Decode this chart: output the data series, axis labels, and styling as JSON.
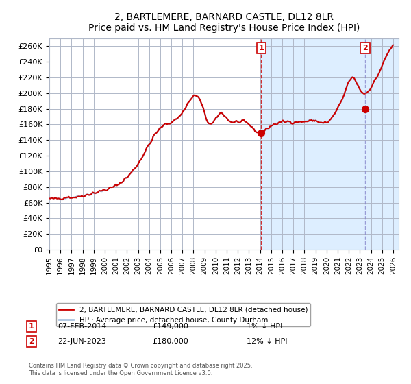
{
  "title": "2, BARTLEMERE, BARNARD CASTLE, DL12 8LR",
  "subtitle": "Price paid vs. HM Land Registry's House Price Index (HPI)",
  "ylabel_ticks": [
    "£0",
    "£20K",
    "£40K",
    "£60K",
    "£80K",
    "£100K",
    "£120K",
    "£140K",
    "£160K",
    "£180K",
    "£200K",
    "£220K",
    "£240K",
    "£260K"
  ],
  "ytick_vals": [
    0,
    20000,
    40000,
    60000,
    80000,
    100000,
    120000,
    140000,
    160000,
    180000,
    200000,
    220000,
    240000,
    260000
  ],
  "ylim": [
    0,
    270000
  ],
  "xlim_start": 1995.0,
  "xlim_end": 2026.5,
  "sale1_date": 2014.1,
  "sale1_price": 149000,
  "sale1_label": "1",
  "sale2_date": 2023.47,
  "sale2_price": 180000,
  "sale2_label": "2",
  "annotation1_date": "07-FEB-2014",
  "annotation1_price": "£149,000",
  "annotation1_hpi": "1% ↓ HPI",
  "annotation2_date": "22-JUN-2023",
  "annotation2_price": "£180,000",
  "annotation2_hpi": "12% ↓ HPI",
  "hpi_line_color": "#aac4e0",
  "price_line_color": "#cc0000",
  "shade_color": "#ddeeff",
  "grid_color": "#b0b8c8",
  "background_color": "#ffffff",
  "legend_line1": "2, BARTLEMERE, BARNARD CASTLE, DL12 8LR (detached house)",
  "legend_line2": "HPI: Average price, detached house, County Durham",
  "footer": "Contains HM Land Registry data © Crown copyright and database right 2025.\nThis data is licensed under the Open Government Licence v3.0."
}
